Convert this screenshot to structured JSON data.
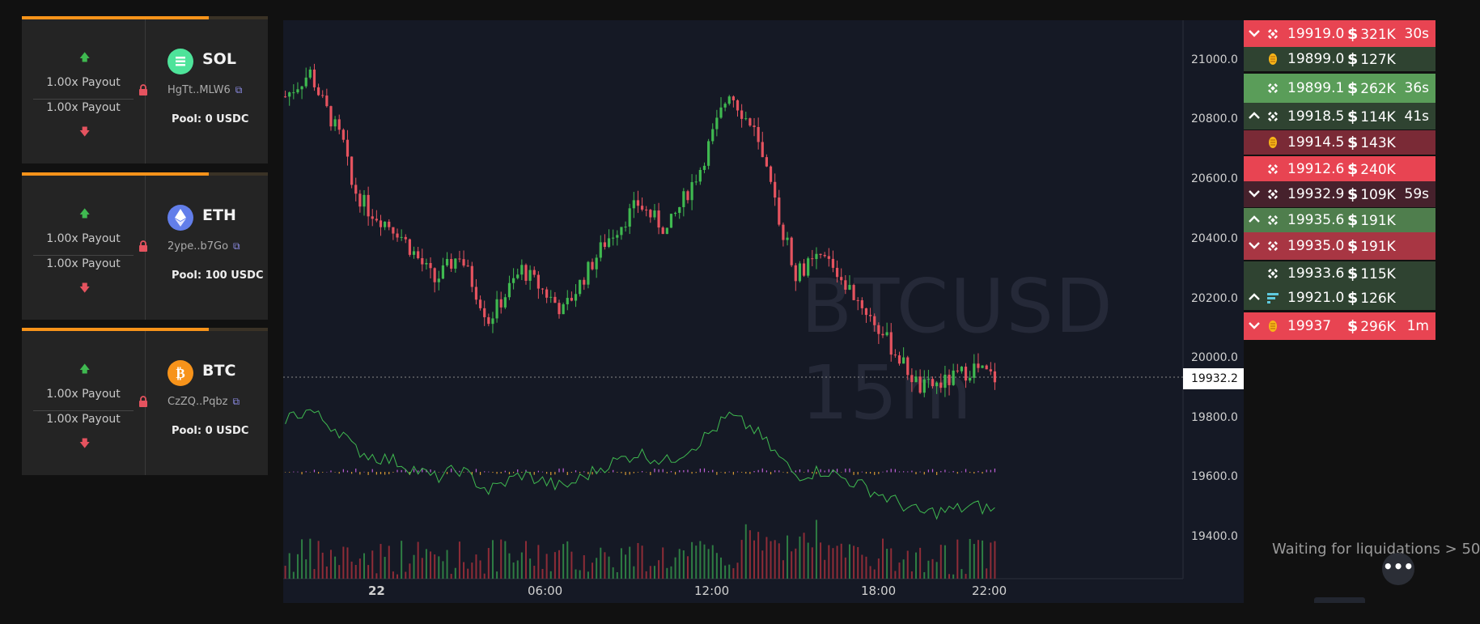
{
  "markets": [
    {
      "symbol": "SOL",
      "address": "HgTt..MLW6",
      "pool": "Pool: 0 USDC",
      "payout_up": "1.00x Payout",
      "payout_down": "1.00x Payout",
      "progress": 0.76,
      "coin_color": "#4ee39a",
      "coin_icon": "sol-icon"
    },
    {
      "symbol": "ETH",
      "address": "2ype..b7Go",
      "pool": "Pool: 100 USDC",
      "payout_up": "1.00x Payout",
      "payout_down": "1.00x Payout",
      "progress": 0.76,
      "coin_color": "#627eea",
      "coin_icon": "eth-icon"
    },
    {
      "symbol": "BTC",
      "address": "CzZQ..Pqbz",
      "pool": "Pool: 0 USDC",
      "payout_up": "1.00x Payout",
      "payout_down": "1.00x Payout",
      "progress": 0.76,
      "coin_color": "#f7931a",
      "coin_icon": "btc-icon"
    }
  ],
  "chart": {
    "watermark": "BTCUSD 15m",
    "current_price": "19932.2",
    "y_ticks": [
      "21000.0",
      "20800.0",
      "20600.0",
      "20400.0",
      "20200.0",
      "20000.0",
      "19800.0",
      "19600.0",
      "19400.0"
    ],
    "x_ticks": [
      "22",
      "06:00",
      "12:00",
      "18:00",
      "22:00"
    ]
  },
  "chart_data": {
    "type": "candlestick",
    "title": "BTCUSD 15m",
    "ylim": [
      19300,
      21150
    ],
    "current_price": 19932.2,
    "y_ticks": [
      21000,
      20800,
      20600,
      20400,
      20200,
      20000,
      19800,
      19600,
      19400
    ],
    "x_ticks": [
      "22",
      "06:00",
      "12:00",
      "18:00",
      "22:00"
    ],
    "close_path": [
      [
        0,
        20880
      ],
      [
        6,
        20960
      ],
      [
        9,
        20860
      ],
      [
        14,
        20720
      ],
      [
        16,
        20580
      ],
      [
        20,
        20500
      ],
      [
        27,
        20430
      ],
      [
        36,
        20260
      ],
      [
        42,
        20350
      ],
      [
        49,
        20130
      ],
      [
        57,
        20300
      ],
      [
        67,
        20160
      ],
      [
        77,
        20390
      ],
      [
        85,
        20520
      ],
      [
        92,
        20430
      ],
      [
        100,
        20640
      ],
      [
        107,
        20900
      ],
      [
        113,
        20760
      ],
      [
        118,
        20520
      ],
      [
        123,
        20290
      ],
      [
        130,
        20340
      ],
      [
        139,
        20180
      ],
      [
        146,
        20040
      ],
      [
        153,
        19900
      ],
      [
        159,
        19920
      ],
      [
        166,
        19970
      ],
      [
        171,
        19935
      ]
    ]
  },
  "liquidations": [
    {
      "dir": "down",
      "icon": "binance-icon",
      "price": "19919.0",
      "amount": "321K",
      "time": "30s",
      "bg": "#e84452"
    },
    {
      "dir": "",
      "icon": "bitmex-icon",
      "price": "19899.0",
      "amount": "127K",
      "time": "",
      "bg": "#2f4331"
    },
    {
      "dir": "",
      "icon": "binance-icon",
      "price": "19899.1",
      "amount": "262K",
      "time": "36s",
      "bg": "#5a9d59"
    },
    {
      "dir": "up",
      "icon": "binance-icon",
      "price": "19918.5",
      "amount": "114K",
      "time": "41s",
      "bg": "#2f4331"
    },
    {
      "dir": "",
      "icon": "bitmex-icon",
      "price": "19914.5",
      "amount": "143K",
      "time": "",
      "bg": "#7a2a36"
    },
    {
      "dir": "",
      "icon": "binance-icon",
      "price": "19912.6",
      "amount": "240K",
      "time": "",
      "bg": "#e84452"
    },
    {
      "dir": "down",
      "icon": "binance-icon",
      "price": "19932.9",
      "amount": "109K",
      "time": "59s",
      "bg": "#46212c"
    },
    {
      "dir": "up",
      "icon": "binance-icon",
      "price": "19935.6",
      "amount": "191K",
      "time": "",
      "bg": "#4f7e4d"
    },
    {
      "dir": "down",
      "icon": "binance-icon",
      "price": "19935.0",
      "amount": "191K",
      "time": "",
      "bg": "#a83643"
    },
    {
      "dir": "",
      "icon": "binance-icon",
      "price": "19933.6",
      "amount": "115K",
      "time": "",
      "bg": "#2f4331"
    },
    {
      "dir": "up",
      "icon": "ftx-icon",
      "price": "19921.0",
      "amount": "126K",
      "time": "",
      "bg": "#2f4331"
    },
    {
      "dir": "down",
      "icon": "bitmex-icon",
      "price": "19937",
      "amount": "296K",
      "time": "1m",
      "bg": "#e84452"
    }
  ],
  "waiting_text": "Waiting for liquidations > 50",
  "more_label": "•••"
}
